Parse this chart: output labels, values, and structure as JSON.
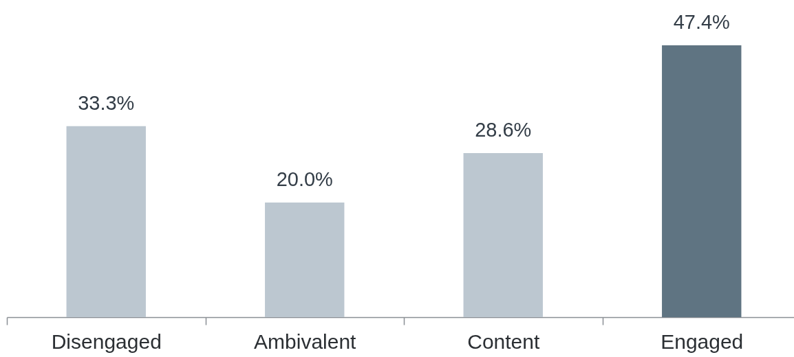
{
  "chart_data": {
    "type": "bar",
    "categories": [
      "Disengaged",
      "Ambivalent",
      "Content",
      "Engaged"
    ],
    "values": [
      33.3,
      20.0,
      28.6,
      47.4
    ],
    "value_labels": [
      "33.3%",
      "20.0%",
      "28.6%",
      "47.4%"
    ],
    "colors": [
      "#bcc7d0",
      "#bcc7d0",
      "#bcc7d0",
      "#5f7482"
    ],
    "grid": false
  }
}
